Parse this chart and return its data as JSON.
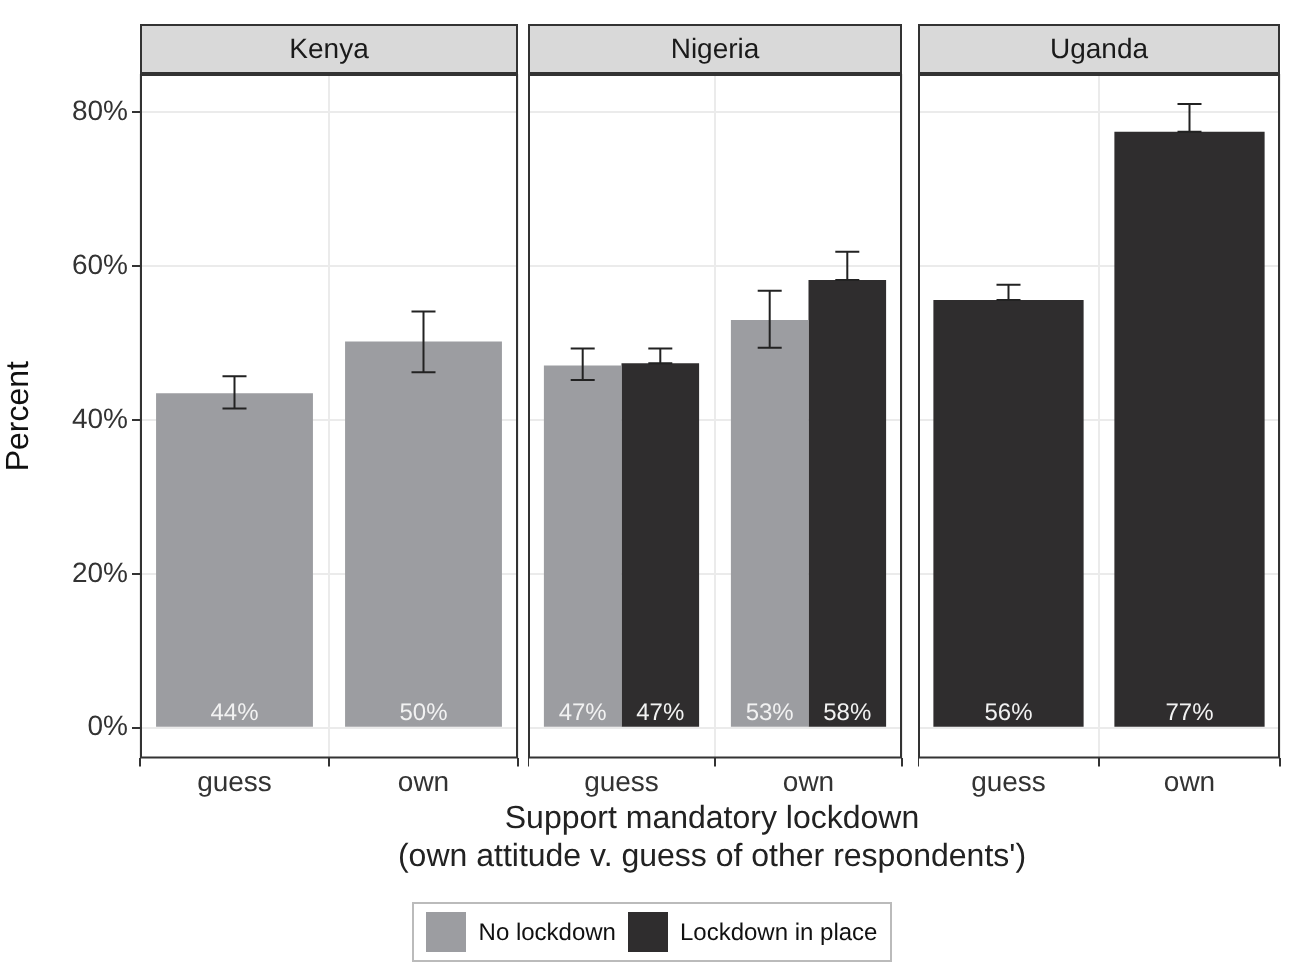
{
  "chart_data": [
    {
      "type": "bar",
      "title": "Kenya",
      "ylabel": "Percent",
      "categories": [
        "guess",
        "own"
      ],
      "ylim": [
        -4,
        85
      ],
      "yticks": [
        {
          "value": 0,
          "label": "0%"
        },
        {
          "value": 20,
          "label": "20%"
        },
        {
          "value": 40,
          "label": "40%"
        },
        {
          "value": 60,
          "label": "60%"
        },
        {
          "value": 80,
          "label": "80%"
        }
      ],
      "grid": true,
      "legend": false,
      "series": [
        {
          "color": "#9c9da1",
          "values": [
            43.5,
            50.2
          ],
          "errors": [
            [
              41.5,
              45.7
            ],
            [
              46.2,
              54.1
            ]
          ],
          "value_labels": [
            "44%",
            "50%"
          ]
        }
      ]
    },
    {
      "type": "bar",
      "title": "Nigeria",
      "xlabel": "Support mandatory lockdown\n(own attitude v. guess of other respondents')",
      "categories": [
        "guess",
        "own"
      ],
      "ylim": [
        -4,
        85
      ],
      "yticks": [
        0,
        20,
        40,
        60,
        80
      ],
      "tick_labels": "x",
      "grid": true,
      "legend": "bottom",
      "series": [
        {
          "name": "No lockdown",
          "color": "#9c9da1",
          "values": [
            47.1,
            53.0
          ],
          "errors": [
            [
              45.2,
              49.3
            ],
            [
              49.4,
              56.8
            ]
          ],
          "value_labels": [
            "47%",
            "53%"
          ]
        },
        {
          "name": "Lockdown in place",
          "color": "#2f2d2e",
          "values": [
            47.4,
            58.2
          ],
          "errors": [
            [
              47.4,
              49.3
            ],
            [
              58.2,
              61.9
            ]
          ],
          "value_labels": [
            "47%",
            "58%"
          ]
        }
      ]
    },
    {
      "type": "bar",
      "title": "Uganda",
      "categories": [
        "guess",
        "own"
      ],
      "ylim": [
        -4,
        85
      ],
      "yticks": [
        0,
        20,
        40,
        60,
        80
      ],
      "tick_labels": "x",
      "grid": true,
      "legend": false,
      "series": [
        {
          "color": "#2f2d2e",
          "values": [
            55.6,
            77.5
          ],
          "errors": [
            [
              55.6,
              57.6
            ],
            [
              77.5,
              81.1
            ]
          ],
          "value_labels": [
            "56%",
            "77%"
          ]
        }
      ]
    }
  ]
}
